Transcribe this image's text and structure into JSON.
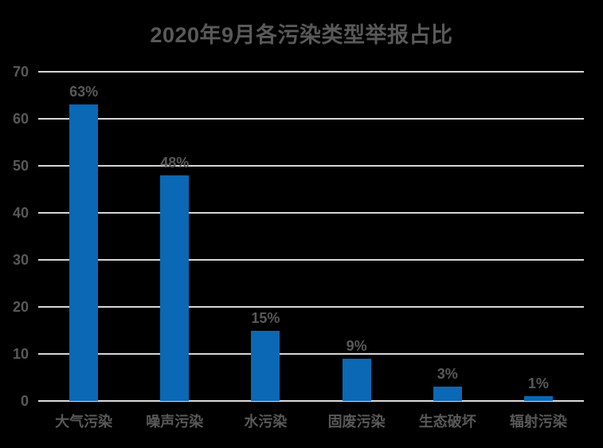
{
  "colors": {
    "background": "#000000",
    "bar": "#0A68B4",
    "text": "#595959",
    "gridline": "#D6D6D6",
    "axis_line": "#DCDCDC"
  },
  "chart_data": {
    "type": "bar",
    "title": "2020年9月各污染类型举报占比",
    "categories": [
      "大气污染",
      "噪声污染",
      "水污染",
      "固废污染",
      "生态破坏",
      "辐射污染"
    ],
    "values": [
      63,
      48,
      15,
      9,
      3,
      1
    ],
    "data_labels": [
      "63%",
      "48%",
      "15%",
      "9%",
      "3%",
      "1%"
    ],
    "xlabel": "",
    "ylabel": "",
    "ylim": [
      0,
      70
    ],
    "y_ticks": [
      0,
      10,
      20,
      30,
      40,
      50,
      60,
      70
    ],
    "grid": "horizontal",
    "legend": "none"
  }
}
